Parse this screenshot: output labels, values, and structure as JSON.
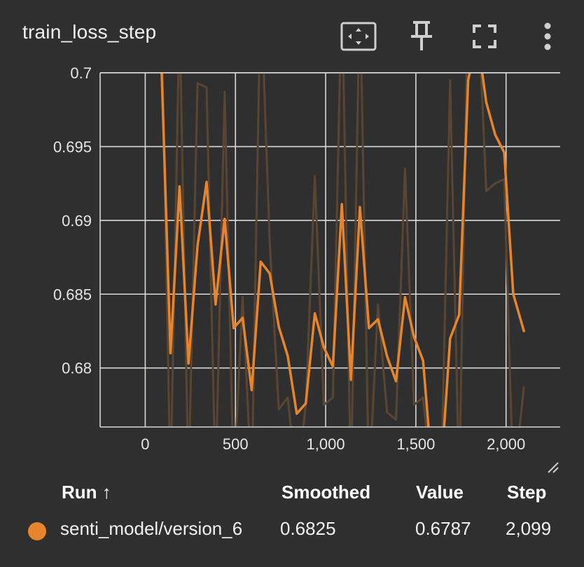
{
  "header": {
    "title": "train_loss_step"
  },
  "toolbar": {
    "fit_icon": "fit-domain-icon",
    "pin_icon": "pin-icon",
    "fullscreen_icon": "fullscreen-icon",
    "menu_icon": "more-vert-icon"
  },
  "colors": {
    "background": "#2f2f2f",
    "grid": "#d9d9d9",
    "smoothed": "#e8842c",
    "raw": "#5a4533"
  },
  "chart_data": {
    "type": "line",
    "title": "train_loss_step",
    "xlabel": "",
    "ylabel": "",
    "xlim": [
      -250,
      2300
    ],
    "ylim": [
      0.676,
      0.7
    ],
    "x_ticks": [
      0,
      500,
      1000,
      1500,
      2000
    ],
    "x_tick_labels": [
      "0",
      "500",
      "1,000",
      "1,500",
      "2,000"
    ],
    "y_ticks": [
      0.68,
      0.685,
      0.69,
      0.695,
      0.7
    ],
    "y_tick_labels": [
      "0.68",
      "0.685",
      "0.69",
      "0.695",
      "0.7"
    ],
    "grid": true,
    "series": [
      {
        "name": "senti_model/version_6 (raw)",
        "role": "raw",
        "x": [
          90,
          140,
          190,
          240,
          290,
          340,
          390,
          440,
          490,
          540,
          590,
          640,
          690,
          740,
          790,
          840,
          890,
          940,
          990,
          1040,
          1090,
          1140,
          1190,
          1240,
          1290,
          1340,
          1390,
          1440,
          1490,
          1540,
          1590,
          1640,
          1690,
          1740,
          1790,
          1840,
          1890,
          1940,
          1990,
          2040,
          2099
        ],
        "values": [
          0.704,
          0.672,
          0.704,
          0.672,
          0.6993,
          0.699,
          0.672,
          0.6987,
          0.672,
          0.6848,
          0.672,
          0.706,
          0.6885,
          0.6772,
          0.678,
          0.672,
          0.6775,
          0.693,
          0.6775,
          0.678,
          0.706,
          0.672,
          0.706,
          0.672,
          0.6843,
          0.677,
          0.6765,
          0.6935,
          0.6775,
          0.678,
          0.672,
          0.672,
          0.6995,
          0.672,
          0.706,
          0.706,
          0.692,
          0.6925,
          0.6928,
          0.672,
          0.6787
        ]
      },
      {
        "name": "senti_model/version_6",
        "role": "smoothed",
        "x": [
          90,
          140,
          190,
          240,
          290,
          340,
          390,
          440,
          490,
          540,
          590,
          640,
          690,
          740,
          790,
          840,
          890,
          940,
          990,
          1040,
          1090,
          1140,
          1190,
          1240,
          1290,
          1340,
          1390,
          1440,
          1490,
          1540,
          1590,
          1640,
          1690,
          1740,
          1790,
          1840,
          1890,
          1940,
          1990,
          2040,
          2099
        ],
        "values": [
          0.7005,
          0.681,
          0.6923,
          0.6803,
          0.6883,
          0.6926,
          0.6843,
          0.6901,
          0.6827,
          0.6834,
          0.6785,
          0.6872,
          0.6864,
          0.6828,
          0.6808,
          0.6769,
          0.6776,
          0.6837,
          0.6814,
          0.6801,
          0.6911,
          0.6792,
          0.6909,
          0.6827,
          0.6833,
          0.6808,
          0.6791,
          0.6848,
          0.6821,
          0.6805,
          0.673,
          0.673,
          0.682,
          0.6836,
          0.6995,
          0.7025,
          0.698,
          0.6958,
          0.6946,
          0.685,
          0.6825
        ]
      }
    ]
  },
  "table": {
    "headers": {
      "run": "Run ↑",
      "smoothed": "Smoothed",
      "value": "Value",
      "step": "Step"
    },
    "rows": [
      {
        "color": "#e8842c",
        "run": "senti_model/version_6",
        "smoothed": "0.6825",
        "value": "0.6787",
        "step": "2,099"
      }
    ]
  }
}
